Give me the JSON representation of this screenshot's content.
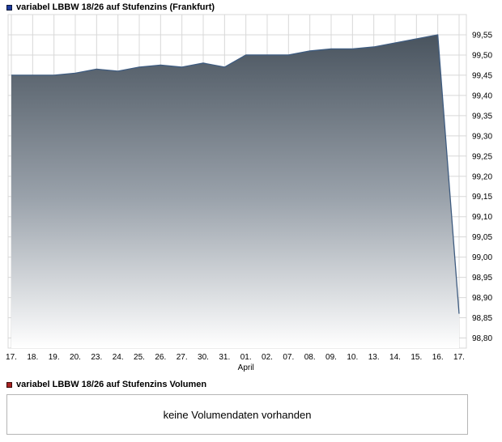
{
  "header": {
    "title": "variabel LBBW 18/26 auf Stufenzins (Frankfurt)",
    "legend_color": "#1f3d9e"
  },
  "volume": {
    "title": "variabel LBBW 18/26 auf Stufenzins Volumen",
    "legend_color": "#a82222",
    "empty_message": "keine Volumendaten vorhanden"
  },
  "chart_data": {
    "type": "area",
    "title": "variabel LBBW 18/26 auf Stufenzins (Frankfurt)",
    "x": [
      "17.",
      "18.",
      "19.",
      "20.",
      "23.",
      "24.",
      "25.",
      "26.",
      "27.",
      "30.",
      "31.",
      "01.",
      "02.",
      "07.",
      "08.",
      "09.",
      "10.",
      "13.",
      "14.",
      "15.",
      "16.",
      "17."
    ],
    "values": [
      99.45,
      99.45,
      99.45,
      99.455,
      99.465,
      99.46,
      99.47,
      99.475,
      99.47,
      99.48,
      99.47,
      99.5,
      99.5,
      99.5,
      99.51,
      99.515,
      99.515,
      99.52,
      99.53,
      99.54,
      99.55,
      98.86
    ],
    "month_label": {
      "text": "April",
      "index": 11
    },
    "y_tick_values": [
      99.55,
      99.5,
      99.45,
      99.4,
      99.35,
      99.3,
      99.25,
      99.2,
      99.15,
      99.1,
      99.05,
      99.0,
      98.95,
      98.9,
      98.85,
      98.8
    ],
    "y_tick_labels": [
      "99,55",
      "99,50",
      "99,45",
      "99,40",
      "99,35",
      "99,30",
      "99,25",
      "99,20",
      "99,15",
      "99,10",
      "99,05",
      "99,00",
      "98,95",
      "98,90",
      "98,85",
      "98,80"
    ],
    "ylim": [
      98.775,
      99.6
    ],
    "grid": true,
    "legend_position": "top-left",
    "grid_color": "#d8d8d8",
    "line_color": "#3f5c80",
    "fill_colors": [
      "#3f4a55",
      "#9aa2ab",
      "#ffffff"
    ]
  }
}
